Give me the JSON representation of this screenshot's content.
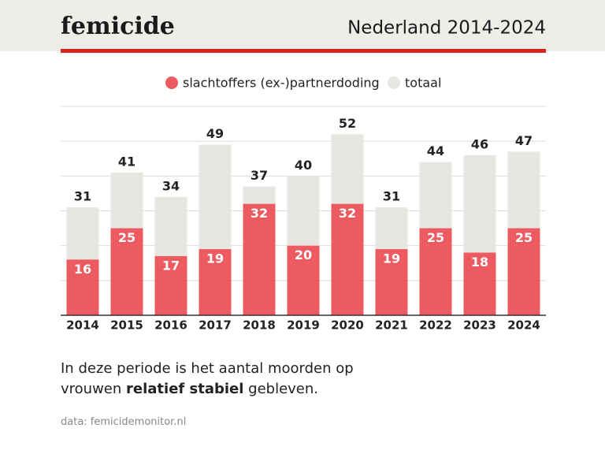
{
  "chart_data": {
    "type": "overlap-bar",
    "title": "femicide",
    "subtitle": "Nederland 2014-2024",
    "categories": [
      "2014",
      "2015",
      "2016",
      "2017",
      "2018",
      "2019",
      "2020",
      "2021",
      "2022",
      "2023",
      "2024"
    ],
    "series": [
      {
        "name": "slachtoffers (ex-)partnerdoding",
        "color": "#ec5b61",
        "values": [
          16,
          25,
          17,
          19,
          32,
          20,
          32,
          19,
          25,
          18,
          25
        ]
      },
      {
        "name": "totaal",
        "color": "#e8e6e1",
        "values": [
          31,
          41,
          34,
          49,
          37,
          40,
          52,
          31,
          44,
          46,
          47
        ]
      }
    ],
    "ylim": [
      0,
      60
    ],
    "yticks": [
      10,
      20,
      30,
      40,
      50,
      60
    ],
    "grid": true,
    "caption": {
      "line1": "In deze periode is het aantal moorden op",
      "line2": [
        "vrouwen",
        "relatief stabiel",
        "gebleven."
      ]
    },
    "source": "data: femicidemonitor.nl"
  }
}
